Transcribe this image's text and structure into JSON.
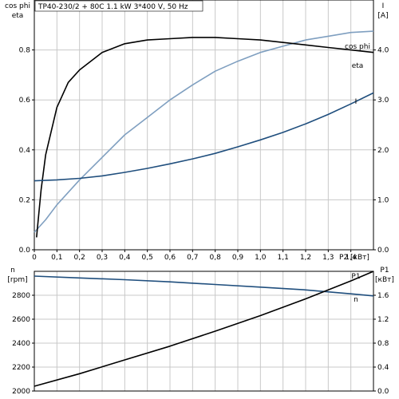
{
  "header": {
    "title": "TP40-230/2 + 80C   1.1 kW   3*400 V, 50 Hz"
  },
  "chart_data": [
    {
      "type": "line",
      "panel": "upper",
      "left_axis_labels": [
        "cos phi",
        "eta"
      ],
      "right_axis_labels": [
        "I",
        "[A]"
      ],
      "x_unit_label": "P2 [кВт]",
      "xlim": [
        0,
        1.5
      ],
      "ylim_left": [
        0,
        1.0
      ],
      "ylim_right": [
        0,
        5.0
      ],
      "x_ticks": [
        "0",
        "0,1",
        "0,2",
        "0,3",
        "0,4",
        "0,5",
        "0,6",
        "0,7",
        "0,8",
        "0,9",
        "1,0",
        "1,1",
        "1,2",
        "1,3",
        "1,4"
      ],
      "y_ticks_left": [
        "0.0",
        "0.2",
        "0.4",
        "0.6",
        "0.8"
      ],
      "y_ticks_right": [
        "0.0",
        "1.0",
        "2.0",
        "3.0",
        "4.0"
      ],
      "grid": true,
      "series": [
        {
          "name": "cos phi",
          "axis": "left",
          "color": "#7f9fc0",
          "x": [
            0,
            0.05,
            0.1,
            0.2,
            0.3,
            0.4,
            0.5,
            0.6,
            0.7,
            0.8,
            0.9,
            1.0,
            1.1,
            1.2,
            1.3,
            1.4,
            1.5
          ],
          "y": [
            0.07,
            0.12,
            0.18,
            0.28,
            0.37,
            0.46,
            0.53,
            0.6,
            0.66,
            0.715,
            0.755,
            0.79,
            0.815,
            0.84,
            0.855,
            0.87,
            0.875
          ]
        },
        {
          "name": "eta",
          "axis": "left",
          "color": "#000000",
          "x": [
            0.01,
            0.03,
            0.05,
            0.1,
            0.15,
            0.2,
            0.3,
            0.4,
            0.5,
            0.6,
            0.7,
            0.8,
            0.9,
            1.0,
            1.1,
            1.2,
            1.3,
            1.4,
            1.5
          ],
          "y": [
            0.05,
            0.24,
            0.38,
            0.57,
            0.67,
            0.72,
            0.79,
            0.825,
            0.84,
            0.845,
            0.85,
            0.85,
            0.845,
            0.84,
            0.83,
            0.82,
            0.81,
            0.8,
            0.79
          ]
        },
        {
          "name": "I",
          "axis": "right",
          "color": "#1f4e7d",
          "x": [
            0,
            0.1,
            0.2,
            0.3,
            0.4,
            0.5,
            0.6,
            0.7,
            0.8,
            0.9,
            1.0,
            1.1,
            1.2,
            1.3,
            1.4,
            1.5
          ],
          "y": [
            1.38,
            1.4,
            1.43,
            1.48,
            1.55,
            1.63,
            1.72,
            1.82,
            1.93,
            2.06,
            2.2,
            2.35,
            2.52,
            2.71,
            2.92,
            3.14
          ]
        }
      ]
    },
    {
      "type": "line",
      "panel": "lower",
      "left_axis_labels": [
        "n",
        "[rpm]"
      ],
      "right_axis_labels": [
        "P1",
        "[кВт]"
      ],
      "xlim": [
        0,
        1.5
      ],
      "ylim_left": [
        2000,
        3000
      ],
      "ylim_right": [
        0,
        2.0
      ],
      "y_ticks_left": [
        "2000",
        "2200",
        "2400",
        "2600",
        "2800"
      ],
      "y_ticks_right": [
        "0.0",
        "0.4",
        "0.8",
        "1.2",
        "1.6"
      ],
      "grid": true,
      "series": [
        {
          "name": "n",
          "axis": "left",
          "color": "#1f4e7d",
          "x": [
            0,
            0.2,
            0.4,
            0.6,
            0.8,
            1.0,
            1.2,
            1.4,
            1.5
          ],
          "y": [
            2960,
            2945,
            2930,
            2912,
            2890,
            2868,
            2845,
            2812,
            2795
          ]
        },
        {
          "name": "P1",
          "axis": "right",
          "color": "#000000",
          "x": [
            0,
            0.2,
            0.4,
            0.6,
            0.8,
            1.0,
            1.2,
            1.4,
            1.5
          ],
          "y": [
            0.08,
            0.29,
            0.52,
            0.75,
            1.0,
            1.26,
            1.54,
            1.84,
            2.0
          ]
        }
      ]
    }
  ]
}
